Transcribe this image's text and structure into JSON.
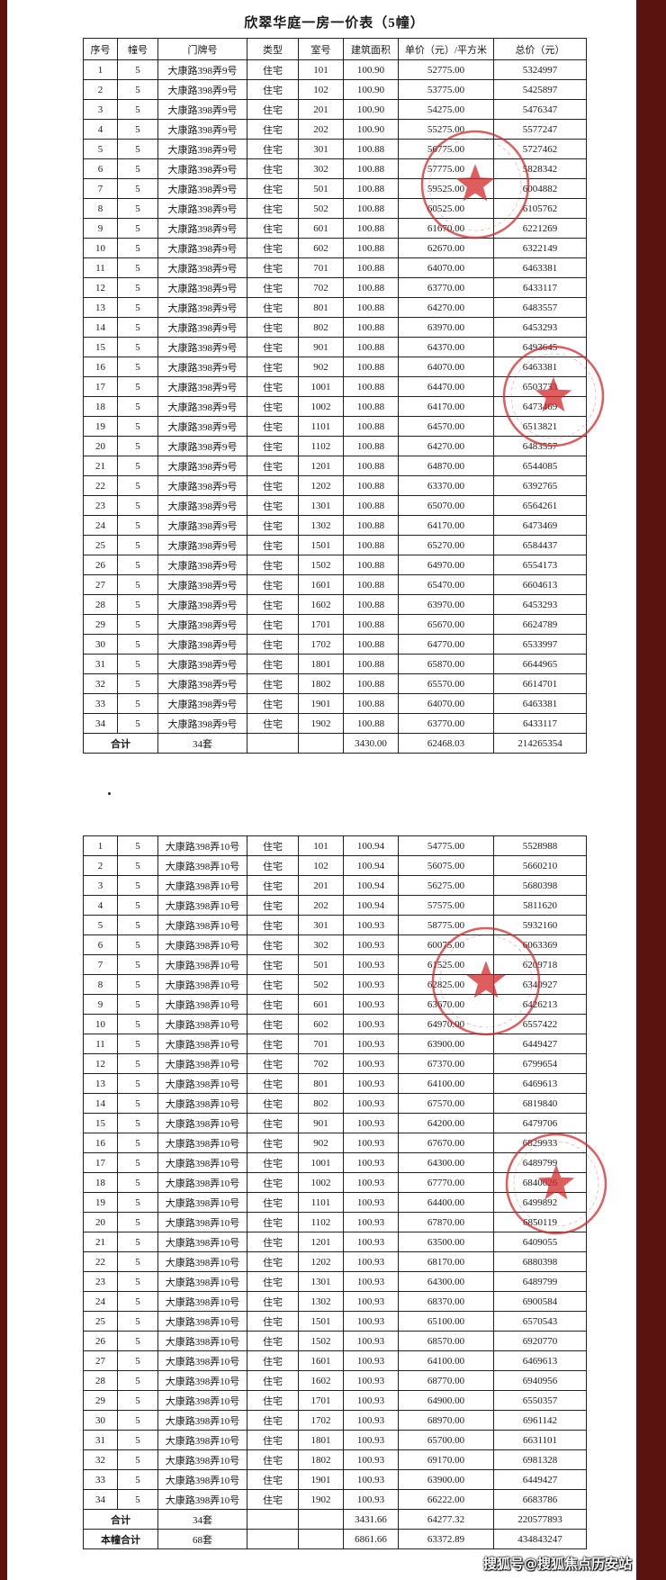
{
  "title": "欣翠华庭一房一价表（5幢）",
  "headers": [
    "序号",
    "幢号",
    "门牌号",
    "类型",
    "室号",
    "建筑面积",
    "单价（元）/平方米",
    "总价（元）"
  ],
  "table1": {
    "rows": [
      [
        "1",
        "5",
        "大康路398弄9号",
        "住宅",
        "101",
        "100.90",
        "52775.00",
        "5324997"
      ],
      [
        "2",
        "5",
        "大康路398弄9号",
        "住宅",
        "102",
        "100.90",
        "53775.00",
        "5425897"
      ],
      [
        "3",
        "5",
        "大康路398弄9号",
        "住宅",
        "201",
        "100.90",
        "54275.00",
        "5476347"
      ],
      [
        "4",
        "5",
        "大康路398弄9号",
        "住宅",
        "202",
        "100.90",
        "55275.00",
        "5577247"
      ],
      [
        "5",
        "5",
        "大康路398弄9号",
        "住宅",
        "301",
        "100.88",
        "56775.00",
        "5727462"
      ],
      [
        "6",
        "5",
        "大康路398弄9号",
        "住宅",
        "302",
        "100.88",
        "57775.00",
        "5828342"
      ],
      [
        "7",
        "5",
        "大康路398弄9号",
        "住宅",
        "501",
        "100.88",
        "59525.00",
        "6004882"
      ],
      [
        "8",
        "5",
        "大康路398弄9号",
        "住宅",
        "502",
        "100.88",
        "60525.00",
        "6105762"
      ],
      [
        "9",
        "5",
        "大康路398弄9号",
        "住宅",
        "601",
        "100.88",
        "61670.00",
        "6221269"
      ],
      [
        "10",
        "5",
        "大康路398弄9号",
        "住宅",
        "602",
        "100.88",
        "62670.00",
        "6322149"
      ],
      [
        "11",
        "5",
        "大康路398弄9号",
        "住宅",
        "701",
        "100.88",
        "64070.00",
        "6463381"
      ],
      [
        "12",
        "5",
        "大康路398弄9号",
        "住宅",
        "702",
        "100.88",
        "63770.00",
        "6433117"
      ],
      [
        "13",
        "5",
        "大康路398弄9号",
        "住宅",
        "801",
        "100.88",
        "64270.00",
        "6483557"
      ],
      [
        "14",
        "5",
        "大康路398弄9号",
        "住宅",
        "802",
        "100.88",
        "63970.00",
        "6453293"
      ],
      [
        "15",
        "5",
        "大康路398弄9号",
        "住宅",
        "901",
        "100.88",
        "64370.00",
        "6493645"
      ],
      [
        "16",
        "5",
        "大康路398弄9号",
        "住宅",
        "902",
        "100.88",
        "64070.00",
        "6463381"
      ],
      [
        "17",
        "5",
        "大康路398弄9号",
        "住宅",
        "1001",
        "100.88",
        "64470.00",
        "6503733"
      ],
      [
        "18",
        "5",
        "大康路398弄9号",
        "住宅",
        "1002",
        "100.88",
        "64170.00",
        "6473469"
      ],
      [
        "19",
        "5",
        "大康路398弄9号",
        "住宅",
        "1101",
        "100.88",
        "64570.00",
        "6513821"
      ],
      [
        "20",
        "5",
        "大康路398弄9号",
        "住宅",
        "1102",
        "100.88",
        "64270.00",
        "6483557"
      ],
      [
        "21",
        "5",
        "大康路398弄9号",
        "住宅",
        "1201",
        "100.88",
        "64870.00",
        "6544085"
      ],
      [
        "22",
        "5",
        "大康路398弄9号",
        "住宅",
        "1202",
        "100.88",
        "63370.00",
        "6392765"
      ],
      [
        "23",
        "5",
        "大康路398弄9号",
        "住宅",
        "1301",
        "100.88",
        "65070.00",
        "6564261"
      ],
      [
        "24",
        "5",
        "大康路398弄9号",
        "住宅",
        "1302",
        "100.88",
        "64170.00",
        "6473469"
      ],
      [
        "25",
        "5",
        "大康路398弄9号",
        "住宅",
        "1501",
        "100.88",
        "65270.00",
        "6584437"
      ],
      [
        "26",
        "5",
        "大康路398弄9号",
        "住宅",
        "1502",
        "100.88",
        "64970.00",
        "6554173"
      ],
      [
        "27",
        "5",
        "大康路398弄9号",
        "住宅",
        "1601",
        "100.88",
        "65470.00",
        "6604613"
      ],
      [
        "28",
        "5",
        "大康路398弄9号",
        "住宅",
        "1602",
        "100.88",
        "63970.00",
        "6453293"
      ],
      [
        "29",
        "5",
        "大康路398弄9号",
        "住宅",
        "1701",
        "100.88",
        "65670.00",
        "6624789"
      ],
      [
        "30",
        "5",
        "大康路398弄9号",
        "住宅",
        "1702",
        "100.88",
        "64770.00",
        "6533997"
      ],
      [
        "31",
        "5",
        "大康路398弄9号",
        "住宅",
        "1801",
        "100.88",
        "65870.00",
        "6644965"
      ],
      [
        "32",
        "5",
        "大康路398弄9号",
        "住宅",
        "1802",
        "100.88",
        "65570.00",
        "6614701"
      ],
      [
        "33",
        "5",
        "大康路398弄9号",
        "住宅",
        "1901",
        "100.88",
        "64070.00",
        "6463381"
      ],
      [
        "34",
        "5",
        "大康路398弄9号",
        "住宅",
        "1902",
        "100.88",
        "63770.00",
        "6433117"
      ]
    ],
    "totals": [
      {
        "label": "合计",
        "count": "34套",
        "area": "3430.00",
        "unit": "62468.03",
        "total": "214265354"
      }
    ]
  },
  "table2": {
    "rows": [
      [
        "1",
        "5",
        "大康路398弄10号",
        "住宅",
        "101",
        "100.94",
        "54775.00",
        "5528988"
      ],
      [
        "2",
        "5",
        "大康路398弄10号",
        "住宅",
        "102",
        "100.94",
        "56075.00",
        "5660210"
      ],
      [
        "3",
        "5",
        "大康路398弄10号",
        "住宅",
        "201",
        "100.94",
        "56275.00",
        "5680398"
      ],
      [
        "4",
        "5",
        "大康路398弄10号",
        "住宅",
        "202",
        "100.94",
        "57575.00",
        "5811620"
      ],
      [
        "5",
        "5",
        "大康路398弄10号",
        "住宅",
        "301",
        "100.93",
        "58775.00",
        "5932160"
      ],
      [
        "6",
        "5",
        "大康路398弄10号",
        "住宅",
        "302",
        "100.93",
        "60075.00",
        "6063369"
      ],
      [
        "7",
        "5",
        "大康路398弄10号",
        "住宅",
        "501",
        "100.93",
        "61525.00",
        "6209718"
      ],
      [
        "8",
        "5",
        "大康路398弄10号",
        "住宅",
        "502",
        "100.93",
        "62825.00",
        "6340927"
      ],
      [
        "9",
        "5",
        "大康路398弄10号",
        "住宅",
        "601",
        "100.93",
        "63670.00",
        "6426213"
      ],
      [
        "10",
        "5",
        "大康路398弄10号",
        "住宅",
        "602",
        "100.93",
        "64970.00",
        "6557422"
      ],
      [
        "11",
        "5",
        "大康路398弄10号",
        "住宅",
        "701",
        "100.93",
        "63900.00",
        "6449427"
      ],
      [
        "12",
        "5",
        "大康路398弄10号",
        "住宅",
        "702",
        "100.93",
        "67370.00",
        "6799654"
      ],
      [
        "13",
        "5",
        "大康路398弄10号",
        "住宅",
        "801",
        "100.93",
        "64100.00",
        "6469613"
      ],
      [
        "14",
        "5",
        "大康路398弄10号",
        "住宅",
        "802",
        "100.93",
        "67570.00",
        "6819840"
      ],
      [
        "15",
        "5",
        "大康路398弄10号",
        "住宅",
        "901",
        "100.93",
        "64200.00",
        "6479706"
      ],
      [
        "16",
        "5",
        "大康路398弄10号",
        "住宅",
        "902",
        "100.93",
        "67670.00",
        "6829933"
      ],
      [
        "17",
        "5",
        "大康路398弄10号",
        "住宅",
        "1001",
        "100.93",
        "64300.00",
        "6489799"
      ],
      [
        "18",
        "5",
        "大康路398弄10号",
        "住宅",
        "1002",
        "100.93",
        "67770.00",
        "6840026"
      ],
      [
        "19",
        "5",
        "大康路398弄10号",
        "住宅",
        "1101",
        "100.93",
        "64400.00",
        "6499892"
      ],
      [
        "20",
        "5",
        "大康路398弄10号",
        "住宅",
        "1102",
        "100.93",
        "67870.00",
        "6850119"
      ],
      [
        "21",
        "5",
        "大康路398弄10号",
        "住宅",
        "1201",
        "100.93",
        "63500.00",
        "6409055"
      ],
      [
        "22",
        "5",
        "大康路398弄10号",
        "住宅",
        "1202",
        "100.93",
        "68170.00",
        "6880398"
      ],
      [
        "23",
        "5",
        "大康路398弄10号",
        "住宅",
        "1301",
        "100.93",
        "64300.00",
        "6489799"
      ],
      [
        "24",
        "5",
        "大康路398弄10号",
        "住宅",
        "1302",
        "100.93",
        "68370.00",
        "6900584"
      ],
      [
        "25",
        "5",
        "大康路398弄10号",
        "住宅",
        "1501",
        "100.93",
        "65100.00",
        "6570543"
      ],
      [
        "26",
        "5",
        "大康路398弄10号",
        "住宅",
        "1502",
        "100.93",
        "68570.00",
        "6920770"
      ],
      [
        "27",
        "5",
        "大康路398弄10号",
        "住宅",
        "1601",
        "100.93",
        "64100.00",
        "6469613"
      ],
      [
        "28",
        "5",
        "大康路398弄10号",
        "住宅",
        "1602",
        "100.93",
        "68770.00",
        "6940956"
      ],
      [
        "29",
        "5",
        "大康路398弄10号",
        "住宅",
        "1701",
        "100.93",
        "64900.00",
        "6550357"
      ],
      [
        "30",
        "5",
        "大康路398弄10号",
        "住宅",
        "1702",
        "100.93",
        "68970.00",
        "6961142"
      ],
      [
        "31",
        "5",
        "大康路398弄10号",
        "住宅",
        "1801",
        "100.93",
        "65700.00",
        "6631101"
      ],
      [
        "32",
        "5",
        "大康路398弄10号",
        "住宅",
        "1802",
        "100.93",
        "69170.00",
        "6981328"
      ],
      [
        "33",
        "5",
        "大康路398弄10号",
        "住宅",
        "1901",
        "100.93",
        "63900.00",
        "6449427"
      ],
      [
        "34",
        "5",
        "大康路398弄10号",
        "住宅",
        "1902",
        "100.93",
        "66222.00",
        "6683786"
      ]
    ],
    "totals": [
      {
        "label": "合计",
        "count": "34套",
        "area": "3431.66",
        "unit": "64277.32",
        "total": "220577893"
      },
      {
        "label": "本幢合计",
        "count": "68套",
        "area": "6861.66",
        "unit": "63372.89",
        "total": "434843247"
      }
    ]
  },
  "watermark": "搜狐号@搜狐焦点历安站",
  "colors": {
    "frame": "#5a130f",
    "stamp": "#d4282a"
  }
}
